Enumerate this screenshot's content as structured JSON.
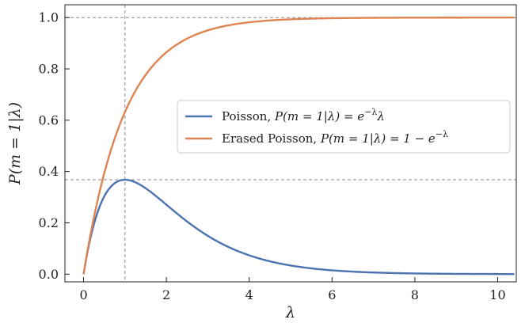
{
  "chart_data": {
    "type": "line",
    "xlabel": "λ",
    "ylabel": "P(m = 1|λ)",
    "xlim": [
      -0.45,
      10.45
    ],
    "ylim": [
      -0.03,
      1.05
    ],
    "xticks": [
      0,
      2,
      4,
      6,
      8,
      10
    ],
    "xtick_labels": [
      "0",
      "2",
      "4",
      "6",
      "8",
      "10"
    ],
    "yticks": [
      0.0,
      0.2,
      0.4,
      0.6,
      0.8,
      1.0
    ],
    "ytick_labels": [
      "0.0",
      "0.2",
      "0.4",
      "0.6",
      "0.8",
      "1.0"
    ],
    "grid": false,
    "legend_position": "center-right",
    "reference_lines": {
      "vertical_x": 1.0,
      "horizontal_y": [
        0.3679,
        1.0
      ],
      "style": "dashed",
      "color": "#888888"
    },
    "series": [
      {
        "name": "Poisson, P(m = 1|λ) = e^{−λ}λ",
        "legend_plain": "Poisson, ",
        "legend_math": "P(m = 1|λ) = e",
        "legend_sup": "−λ",
        "legend_tail": "λ",
        "color": "#4c72b0",
        "x": [
          0,
          0.25,
          0.5,
          0.75,
          1,
          1.25,
          1.5,
          1.75,
          2,
          2.5,
          3,
          3.5,
          4,
          4.5,
          5,
          5.5,
          6,
          6.5,
          7,
          7.5,
          8,
          8.5,
          9,
          9.5,
          10,
          10.4
        ],
        "y": [
          0,
          0.1947,
          0.3033,
          0.3543,
          0.3679,
          0.3581,
          0.3347,
          0.3041,
          0.2707,
          0.2052,
          0.1494,
          0.1057,
          0.0733,
          0.05,
          0.0337,
          0.0225,
          0.0149,
          0.0098,
          0.0064,
          0.0041,
          0.0027,
          0.0017,
          0.0011,
          0.0007,
          0.0005,
          0.0003
        ]
      },
      {
        "name": "Erased Poisson, P(m = 1|λ) = 1 − e^{−λ}",
        "legend_plain": "Erased Poisson, ",
        "legend_math": "P(m = 1|λ) = 1 − e",
        "legend_sup": "−λ",
        "legend_tail": "",
        "color": "#dd8452",
        "x": [
          0,
          0.25,
          0.5,
          0.75,
          1,
          1.25,
          1.5,
          1.75,
          2,
          2.5,
          3,
          3.5,
          4,
          4.5,
          5,
          5.5,
          6,
          6.5,
          7,
          7.5,
          8,
          8.5,
          9,
          9.5,
          10,
          10.4
        ],
        "y": [
          0,
          0.2212,
          0.3935,
          0.5276,
          0.6321,
          0.7135,
          0.7769,
          0.8262,
          0.8647,
          0.9179,
          0.9502,
          0.9698,
          0.9817,
          0.9889,
          0.9933,
          0.9959,
          0.9975,
          0.9985,
          0.9991,
          0.9994,
          0.9997,
          0.9998,
          0.9999,
          0.9999,
          1.0,
          1.0
        ]
      }
    ]
  }
}
